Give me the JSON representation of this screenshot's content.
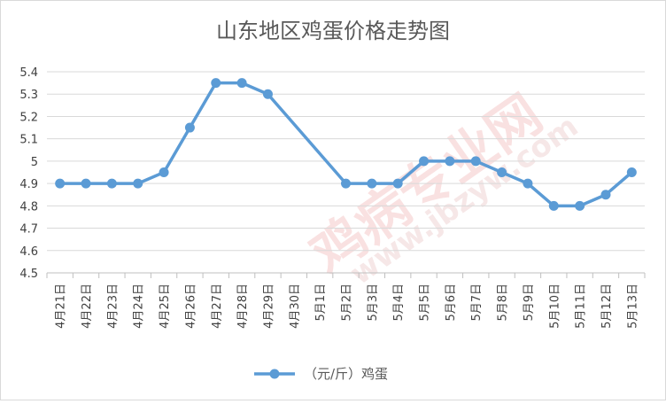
{
  "chart_data": {
    "type": "line",
    "title": "山东地区鸡蛋价格走势图",
    "categories": [
      "4月21日",
      "4月22日",
      "4月23日",
      "4月24日",
      "4月25日",
      "4月26日",
      "4月27日",
      "4月28日",
      "4月29日",
      "4月30日",
      "5月1日",
      "5月2日",
      "5月3日",
      "5月4日",
      "5月5日",
      "5月6日",
      "5月7日",
      "5月8日",
      "5月9日",
      "5月10日",
      "5月11日",
      "5月12日",
      "5月13日"
    ],
    "series": [
      {
        "name": "（元/斤）鸡蛋",
        "values": [
          4.9,
          4.9,
          4.9,
          4.9,
          4.95,
          5.15,
          5.35,
          5.35,
          5.3,
          null,
          null,
          4.9,
          4.9,
          4.9,
          5.0,
          5.0,
          5.0,
          4.95,
          4.9,
          4.8,
          4.8,
          4.85,
          4.95
        ]
      }
    ],
    "ylim": [
      4.5,
      5.4
    ],
    "yticks": [
      "4.5",
      "4.6",
      "4.7",
      "4.8",
      "4.9",
      "5",
      "5.1",
      "5.2",
      "5.3",
      "5.4"
    ],
    "grid": true,
    "legend_position": "bottom",
    "color": "#5B9BD5"
  },
  "watermark": {
    "main": "鸡病专业网",
    "url": "www.jbzyw.com"
  }
}
